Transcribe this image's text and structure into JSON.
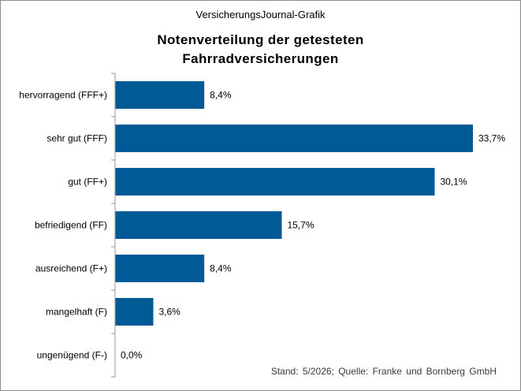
{
  "header": {
    "supertitle": "VersicherungsJournal-Grafik",
    "title_line1": "Notenverteilung der getesteten",
    "title_line2": "Fahrradversicherungen"
  },
  "footer": {
    "source": "Stand: 5/2026; Quelle: Franke und Bornberg GmbH"
  },
  "colors": {
    "bar": "#005a96",
    "axis": "#9a9a9a"
  },
  "chart_data": {
    "type": "bar",
    "orientation": "horizontal",
    "title": "Notenverteilung der getesteten Fahrradversicherungen",
    "categories": [
      "hervorragend (FFF+)",
      "sehr gut (FFF)",
      "gut (FF+)",
      "befriedigend (FF)",
      "ausreichend (F+)",
      "mangelhaft (F)",
      "ungenügend (F-)"
    ],
    "values": [
      8.4,
      33.7,
      30.1,
      15.7,
      8.4,
      3.6,
      0.0
    ],
    "value_labels": [
      "8,4%",
      "33,7%",
      "30,1%",
      "15,7%",
      "8,4%",
      "3,6%",
      "0,0%"
    ],
    "unit": "%",
    "xlim": [
      0,
      35
    ],
    "xlabel": "",
    "ylabel": "",
    "grid": false,
    "legend": "none"
  }
}
